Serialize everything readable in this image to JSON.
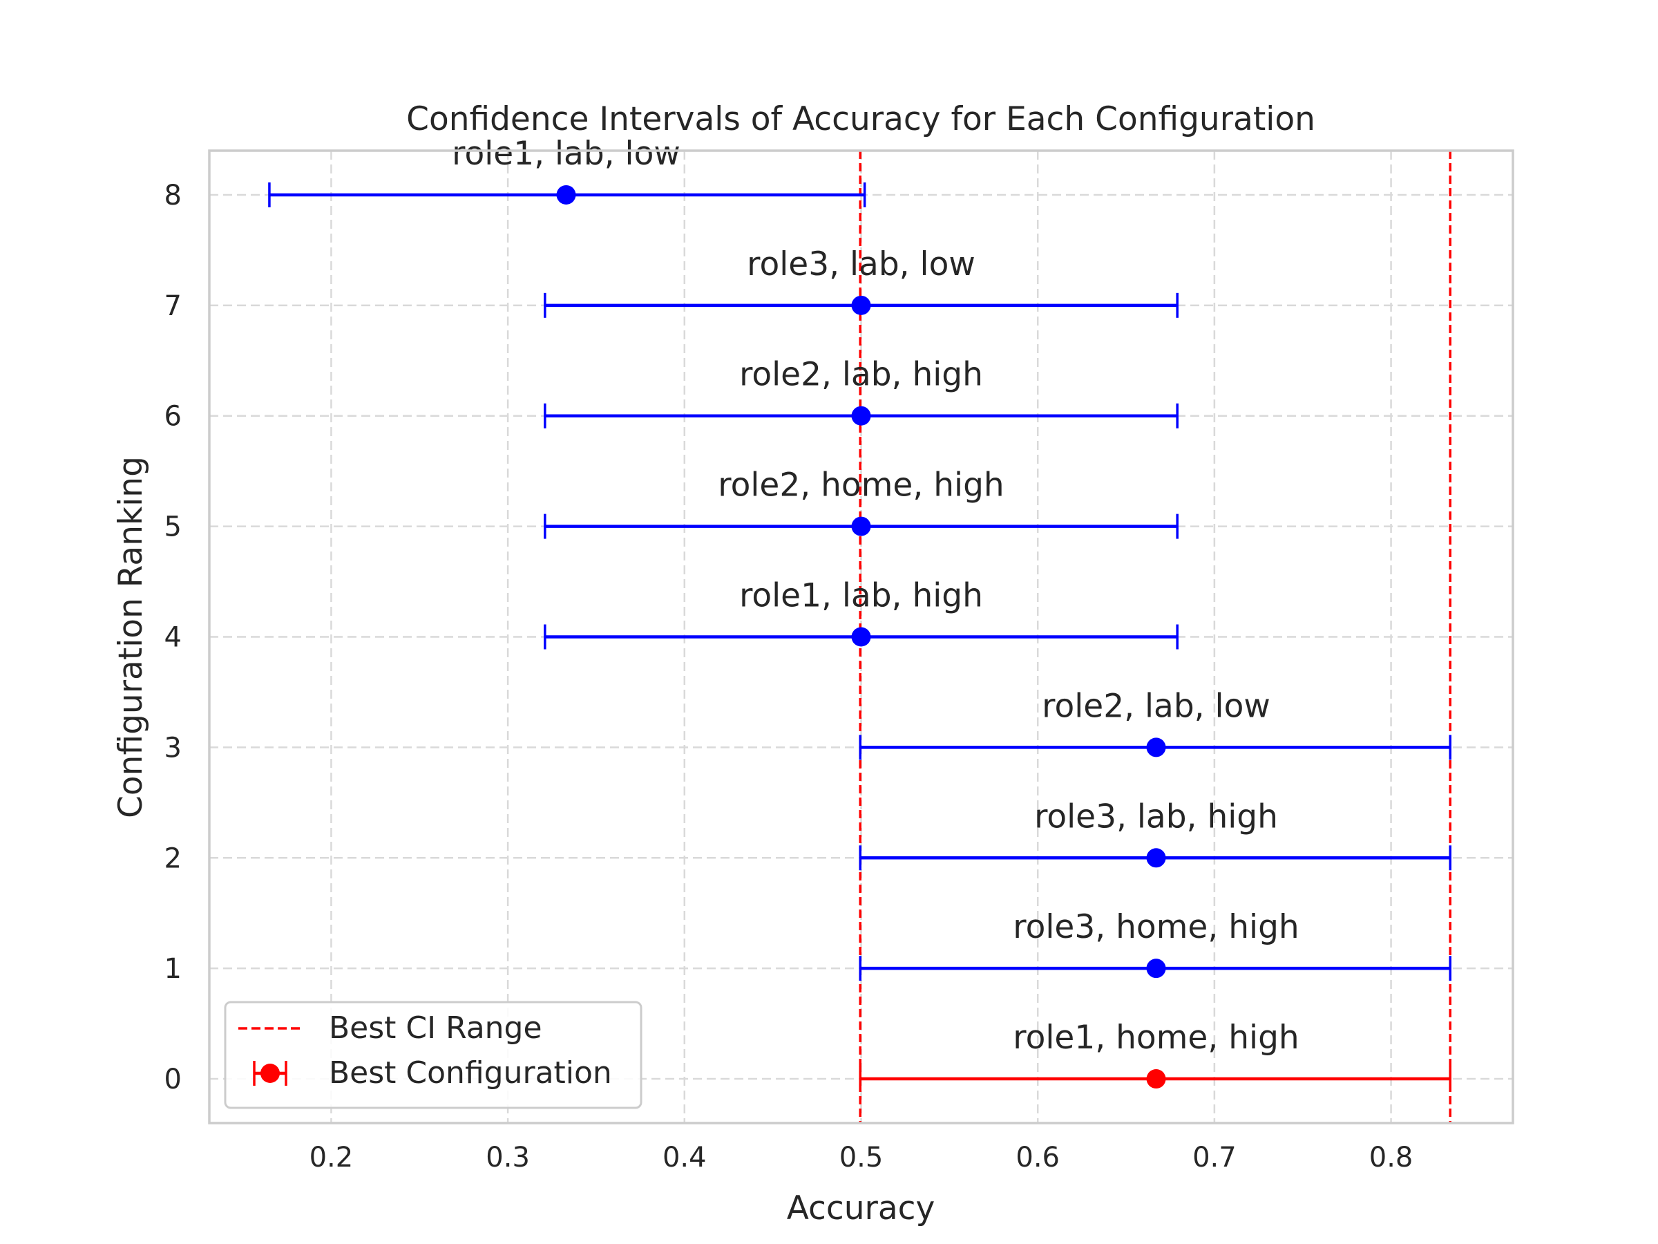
{
  "chart_data": {
    "type": "errorbar",
    "title": "Confidence Intervals of Accuracy for Each Configuration",
    "xlabel": "Accuracy",
    "ylabel": "Configuration Ranking",
    "xlim": [
      0.131,
      0.869
    ],
    "ylim": [
      -0.4,
      8.4
    ],
    "xticks": [
      0.2,
      0.3,
      0.4,
      0.5,
      0.6,
      0.7,
      0.8
    ],
    "yticks": [
      0,
      1,
      2,
      3,
      4,
      5,
      6,
      7,
      8
    ],
    "grid": true,
    "legend": {
      "placement": "lower-left",
      "entries": [
        "Best CI Range",
        "Best Configuration"
      ]
    },
    "best_ci_range": [
      0.4995,
      0.8335
    ],
    "points": [
      {
        "rank": 0,
        "label": "role1, home, high",
        "accuracy": 0.667,
        "ci_low": 0.4995,
        "ci_high": 0.8335,
        "best": true
      },
      {
        "rank": 1,
        "label": "role3, home, high",
        "accuracy": 0.667,
        "ci_low": 0.4995,
        "ci_high": 0.8335,
        "best": false
      },
      {
        "rank": 2,
        "label": "role3, lab, high",
        "accuracy": 0.667,
        "ci_low": 0.4995,
        "ci_high": 0.8335,
        "best": false
      },
      {
        "rank": 3,
        "label": "role2, lab, low",
        "accuracy": 0.667,
        "ci_low": 0.4995,
        "ci_high": 0.8335,
        "best": false
      },
      {
        "rank": 4,
        "label": "role1, lab, high",
        "accuracy": 0.5,
        "ci_low": 0.321,
        "ci_high": 0.679,
        "best": false
      },
      {
        "rank": 5,
        "label": "role2, home, high",
        "accuracy": 0.5,
        "ci_low": 0.321,
        "ci_high": 0.679,
        "best": false
      },
      {
        "rank": 6,
        "label": "role2, lab, high",
        "accuracy": 0.5,
        "ci_low": 0.321,
        "ci_high": 0.679,
        "best": false
      },
      {
        "rank": 7,
        "label": "role3, lab, low",
        "accuracy": 0.5,
        "ci_low": 0.321,
        "ci_high": 0.679,
        "best": false
      },
      {
        "rank": 8,
        "label": "role1, lab, low",
        "accuracy": 0.333,
        "ci_low": 0.165,
        "ci_high": 0.502,
        "best": false
      }
    ],
    "colors": {
      "series": "#0000ff",
      "best": "#ff0000",
      "ci_line": "#ff0000",
      "grid": "#d9d9d9",
      "frame": "#cccccc"
    }
  }
}
